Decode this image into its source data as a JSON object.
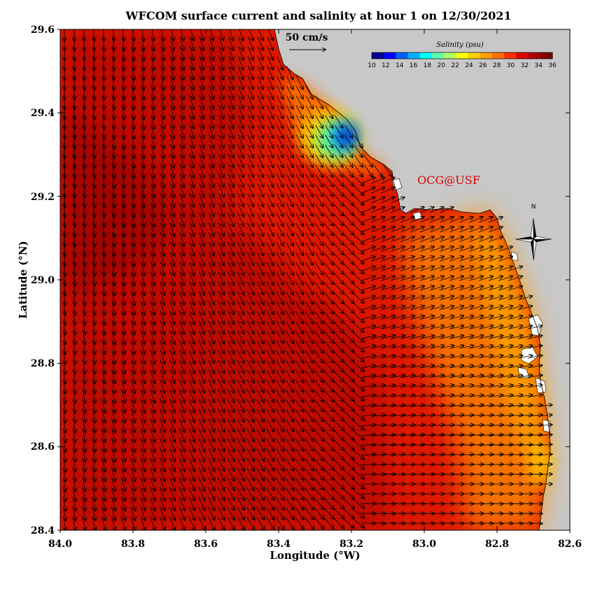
{
  "title": "WFCOM surface current and salinity at hour 1 on 12/30/2021",
  "x_axis": {
    "label": "Longitude (°W)",
    "ticks": [
      "84.0",
      "83.8",
      "83.6",
      "83.4",
      "83.2",
      "83.0",
      "82.8",
      "82.6"
    ]
  },
  "y_axis": {
    "label": "Latitude (°N)",
    "ticks": [
      "29.6",
      "29.4",
      "29.2",
      "29.0",
      "28.8",
      "28.6",
      "28.4"
    ]
  },
  "colorbar": {
    "title": "Salinity (psu)",
    "ticks": [
      "10",
      "12",
      "14",
      "16",
      "18",
      "20",
      "22",
      "24",
      "26",
      "28",
      "30",
      "32",
      "34",
      "36"
    ],
    "colors": [
      "#00008f",
      "#0000ff",
      "#005fff",
      "#00afff",
      "#00ffff",
      "#5fffaf",
      "#afff5f",
      "#ffff00",
      "#ffcf00",
      "#ff9f00",
      "#ff6f00",
      "#ff2f00",
      "#df0000",
      "#af0000",
      "#800000"
    ]
  },
  "scale_arrow": {
    "label": "50 cm/s"
  },
  "credit": "OCG@USF",
  "compass": {
    "label": "N"
  },
  "chart_data": {
    "type": "heatmap",
    "title": "WFCOM surface current and salinity at hour 1 on 12/30/2021",
    "xlabel": "Longitude (°W)",
    "ylabel": "Latitude (°N)",
    "xlim": [
      84.0,
      82.6
    ],
    "ylim": [
      28.4,
      29.6
    ],
    "variable": "Salinity (psu)",
    "color_range": [
      10,
      36
    ],
    "salinity_samples": [
      {
        "lon": 84.0,
        "lat": 29.1,
        "salinity": 35.5
      },
      {
        "lon": 83.6,
        "lat": 28.6,
        "salinity": 35
      },
      {
        "lon": 83.5,
        "lat": 29.5,
        "salinity": 33
      },
      {
        "lon": 83.3,
        "lat": 29.4,
        "salinity": 28
      },
      {
        "lon": 83.22,
        "lat": 29.34,
        "salinity": 12
      },
      {
        "lon": 83.26,
        "lat": 29.3,
        "salinity": 22
      },
      {
        "lon": 82.9,
        "lat": 29.0,
        "salinity": 30
      },
      {
        "lon": 82.75,
        "lat": 28.8,
        "salinity": 29
      },
      {
        "lon": 82.7,
        "lat": 28.5,
        "salinity": 26
      },
      {
        "lon": 83.0,
        "lat": 28.5,
        "salinity": 33
      }
    ],
    "current_field": {
      "scale": "50 cm/s",
      "samples": [
        {
          "lon": 83.5,
          "lat": 29.5,
          "direction": "south",
          "speed_cm_s": 20
        },
        {
          "lon": 83.95,
          "lat": 29.0,
          "direction": "south-east",
          "speed_cm_s": 18
        },
        {
          "lon": 83.4,
          "lat": 28.6,
          "direction": "south-east",
          "speed_cm_s": 18
        },
        {
          "lon": 82.9,
          "lat": 29.1,
          "direction": "north-east",
          "speed_cm_s": 15
        },
        {
          "lon": 82.75,
          "lat": 28.5,
          "direction": "east",
          "speed_cm_s": 12
        }
      ]
    }
  }
}
